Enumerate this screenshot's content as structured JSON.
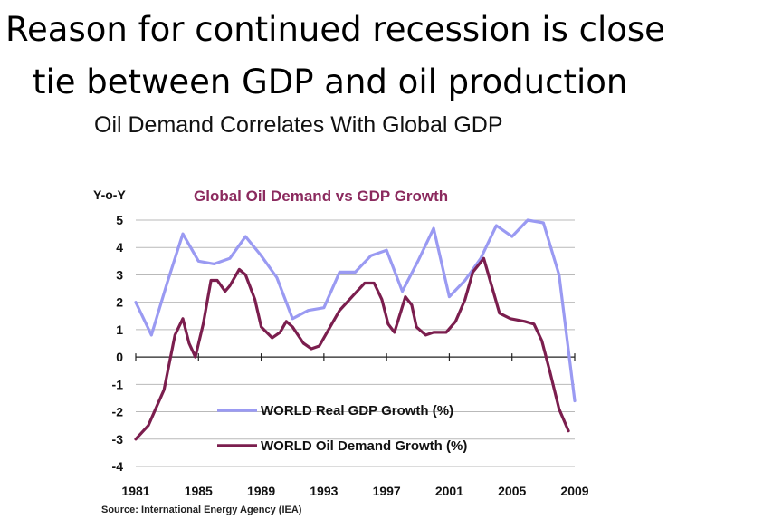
{
  "slide": {
    "title_line1": "Reason for continued recession is close",
    "title_line2": "tie between GDP and oil production",
    "chart_heading": "Oil Demand Correlates With Global GDP",
    "source": "Source: International Energy Agency (IEA)"
  },
  "chart_data": {
    "type": "line",
    "title": "Global Oil Demand vs GDP Growth",
    "ylabel": "Y-o-Y",
    "xlabel": "",
    "ylim": [
      -4,
      5
    ],
    "xlim": [
      1981,
      2009
    ],
    "yticks": [
      "5",
      "4",
      "3",
      "2",
      "1",
      "0",
      "-1",
      "-2",
      "-3",
      "-4"
    ],
    "xticks": [
      "1981",
      "1985",
      "1989",
      "1993",
      "1997",
      "2001",
      "2005",
      "2009"
    ],
    "grid": true,
    "legend_position": "bottom-center",
    "series": [
      {
        "name": "WORLD Real GDP Growth (%)",
        "color": "#9a9af2",
        "points": [
          [
            1981.0,
            2.0
          ],
          [
            1982.0,
            0.8
          ],
          [
            1983.0,
            2.7
          ],
          [
            1984.0,
            4.5
          ],
          [
            1985.0,
            3.5
          ],
          [
            1986.0,
            3.4
          ],
          [
            1987.0,
            3.6
          ],
          [
            1988.0,
            4.4
          ],
          [
            1989.0,
            3.7
          ],
          [
            1990.0,
            2.9
          ],
          [
            1991.0,
            1.4
          ],
          [
            1992.0,
            1.7
          ],
          [
            1993.0,
            1.8
          ],
          [
            1994.0,
            3.1
          ],
          [
            1995.0,
            3.1
          ],
          [
            1996.0,
            3.7
          ],
          [
            1997.0,
            3.9
          ],
          [
            1998.0,
            2.4
          ],
          [
            1999.0,
            3.5
          ],
          [
            2000.0,
            4.7
          ],
          [
            2001.0,
            2.2
          ],
          [
            2002.0,
            2.8
          ],
          [
            2003.0,
            3.6
          ],
          [
            2004.0,
            4.8
          ],
          [
            2005.0,
            4.4
          ],
          [
            2006.0,
            5.0
          ],
          [
            2007.0,
            4.9
          ],
          [
            2008.0,
            3.0
          ],
          [
            2009.0,
            -1.6
          ]
        ]
      },
      {
        "name": "WORLD Oil Demand Growth (%)",
        "color": "#7b1e4e",
        "points": [
          [
            1981.0,
            -3.0
          ],
          [
            1981.8,
            -2.5
          ],
          [
            1982.8,
            -1.2
          ],
          [
            1983.5,
            0.8
          ],
          [
            1984.0,
            1.4
          ],
          [
            1984.4,
            0.5
          ],
          [
            1984.8,
            0.0
          ],
          [
            1985.3,
            1.2
          ],
          [
            1985.8,
            2.8
          ],
          [
            1986.2,
            2.8
          ],
          [
            1986.7,
            2.4
          ],
          [
            1987.0,
            2.6
          ],
          [
            1987.6,
            3.2
          ],
          [
            1988.0,
            3.0
          ],
          [
            1988.6,
            2.1
          ],
          [
            1989.0,
            1.1
          ],
          [
            1989.7,
            0.7
          ],
          [
            1990.2,
            0.9
          ],
          [
            1990.6,
            1.3
          ],
          [
            1991.0,
            1.1
          ],
          [
            1991.7,
            0.5
          ],
          [
            1992.2,
            0.3
          ],
          [
            1992.7,
            0.4
          ],
          [
            1993.2,
            0.9
          ],
          [
            1994.0,
            1.7
          ],
          [
            1994.8,
            2.2
          ],
          [
            1995.6,
            2.7
          ],
          [
            1996.2,
            2.7
          ],
          [
            1996.7,
            2.1
          ],
          [
            1997.1,
            1.2
          ],
          [
            1997.5,
            0.9
          ],
          [
            1998.2,
            2.2
          ],
          [
            1998.6,
            1.9
          ],
          [
            1998.9,
            1.1
          ],
          [
            1999.5,
            0.8
          ],
          [
            2000.0,
            0.9
          ],
          [
            2000.8,
            0.9
          ],
          [
            2001.4,
            1.3
          ],
          [
            2002.0,
            2.1
          ],
          [
            2002.5,
            3.1
          ],
          [
            2003.2,
            3.6
          ],
          [
            2003.7,
            2.6
          ],
          [
            2004.2,
            1.6
          ],
          [
            2004.9,
            1.4
          ],
          [
            2005.8,
            1.3
          ],
          [
            2006.4,
            1.2
          ],
          [
            2006.9,
            0.6
          ],
          [
            2007.4,
            -0.5
          ],
          [
            2008.0,
            -1.9
          ],
          [
            2008.6,
            -2.7
          ]
        ]
      }
    ]
  }
}
